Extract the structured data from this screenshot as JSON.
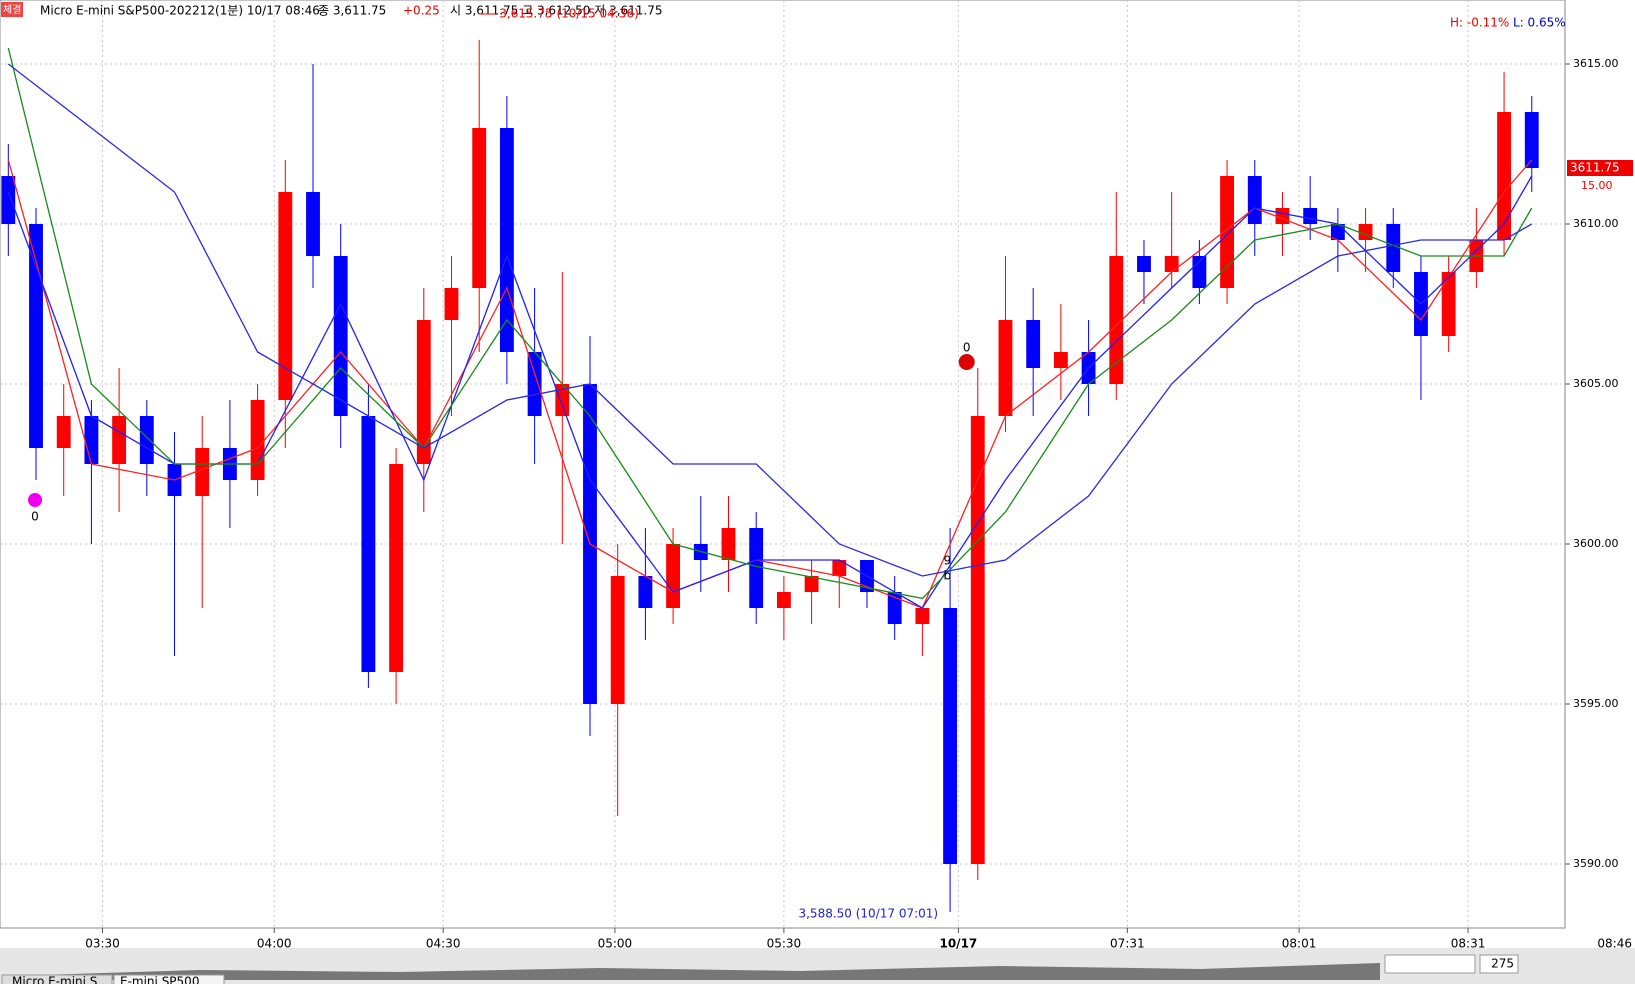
{
  "chart_data": {
    "type": "candlestick",
    "header": {
      "title": "Micro E-mini S&P500-202212(1분) 10/17 08:46",
      "close": "종 3,611.75",
      "change": "+0.25",
      "ohl": "시 3,611.75 고 3,612.50 저 3,611.75",
      "badge": "체결"
    },
    "high_pct": "H: -0.11%",
    "low_pct": "L: 0.65%",
    "high_note": "3,615.75 (10/15 04:36)",
    "low_note": "3,588.50 (10/17 07:01)",
    "last_price": 3611.75,
    "countdown": "15.00",
    "signals": [
      "0",
      "0",
      "9",
      "b"
    ],
    "bar_count": "275",
    "time_now": "08:46",
    "tabs": [
      "Micro E-mini S...",
      "E-mini SP500"
    ],
    "up_color": "#ff0000",
    "down_color": "#0000ff",
    "grid": true,
    "x": [
      0,
      1,
      2,
      3,
      4,
      5,
      6,
      7,
      8,
      9,
      10,
      11,
      12,
      13,
      14,
      15,
      16,
      17,
      18,
      19,
      20,
      21,
      22,
      23,
      24,
      25,
      26,
      27,
      28,
      29,
      30,
      31,
      32,
      33,
      34,
      35,
      36,
      37,
      38,
      39,
      40,
      41,
      42,
      43,
      44,
      45,
      46,
      47,
      48,
      49,
      50,
      51,
      52,
      53,
      54,
      55
    ],
    "open": [
      3611.5,
      3610,
      3603,
      3604,
      3602.5,
      3604,
      3602.5,
      3601.5,
      3603,
      3602,
      3604.5,
      3611,
      3609,
      3604,
      3596,
      3602.5,
      3607,
      3608,
      3613,
      3606,
      3604,
      3605,
      3595,
      3599,
      3598,
      3600,
      3599.5,
      3600.5,
      3598,
      3598.5,
      3599,
      3599.5,
      3598.5,
      3597.5,
      3598,
      3590,
      3604,
      3607,
      3605.5,
      3606,
      3605,
      3609,
      3608.5,
      3609,
      3608,
      3611.5,
      3610,
      3610.5,
      3610,
      3609.5,
      3610,
      3608.5,
      3606.5,
      3608.5,
      3609.5,
      3613.5
    ],
    "high": [
      3612.5,
      3610.5,
      3605,
      3604.5,
      3605.5,
      3604.5,
      3603.5,
      3604,
      3604.5,
      3605,
      3612,
      3615,
      3610,
      3605,
      3603,
      3608,
      3609,
      3615.75,
      3614,
      3608,
      3608.5,
      3606.5,
      3600,
      3600.5,
      3600.5,
      3601.5,
      3601.5,
      3601,
      3599,
      3599.5,
      3599.5,
      3599.5,
      3599,
      3598,
      3600.5,
      3605.5,
      3609,
      3608,
      3607.5,
      3607,
      3611,
      3609.5,
      3611,
      3609.5,
      3612,
      3612,
      3611,
      3611.5,
      3610.5,
      3610.5,
      3610.5,
      3609,
      3609,
      3610.5,
      3614.75,
      3614
    ],
    "low": [
      3609,
      3602,
      3601.5,
      3600,
      3601,
      3601.5,
      3596.5,
      3598,
      3600.5,
      3601.5,
      3603,
      3608,
      3603,
      3595.5,
      3595,
      3601,
      3604,
      3606,
      3605,
      3602.5,
      3600,
      3594,
      3591.5,
      3597,
      3597.5,
      3598.5,
      3598.5,
      3597.5,
      3597,
      3597.5,
      3598,
      3598,
      3597,
      3596.5,
      3588.5,
      3589.5,
      3603.5,
      3604,
      3604.5,
      3604,
      3604.5,
      3607.5,
      3608,
      3607.5,
      3607.5,
      3609,
      3609,
      3609.5,
      3608.5,
      3608.5,
      3608,
      3604.5,
      3606,
      3608,
      3609,
      3611
    ],
    "close": [
      3610,
      3603,
      3604,
      3602.5,
      3604,
      3602.5,
      3601.5,
      3603,
      3602,
      3604.5,
      3611,
      3609,
      3604,
      3596,
      3602.5,
      3607,
      3608,
      3613,
      3606,
      3604,
      3605,
      3595,
      3599,
      3598,
      3600,
      3599.5,
      3600.5,
      3598,
      3598.5,
      3599,
      3599.5,
      3598.5,
      3597.5,
      3598,
      3590,
      3604,
      3607,
      3605.5,
      3606,
      3605,
      3609,
      3608.5,
      3609,
      3608,
      3611.5,
      3610,
      3610.5,
      3610,
      3609.5,
      3610,
      3608.5,
      3606.5,
      3608.5,
      3609.5,
      3613.5,
      3611.75
    ],
    "series": [
      {
        "color": "#ff2020",
        "x": [
          0,
          3,
          6,
          9,
          12,
          15,
          18,
          21,
          24,
          27,
          30,
          33,
          36,
          39,
          42,
          45,
          48,
          51,
          54,
          55
        ],
        "values": [
          3612,
          3602.5,
          3602,
          3603,
          3606,
          3603,
          3608,
          3600,
          3598.5,
          3599.5,
          3599,
          3598,
          3604,
          3606,
          3608.5,
          3610.5,
          3609.5,
          3607,
          3611,
          3612
        ]
      },
      {
        "color": "#2020ff",
        "x": [
          0,
          3,
          6,
          9,
          12,
          15,
          18,
          21,
          24,
          27,
          30,
          33,
          36,
          39,
          42,
          45,
          48,
          51,
          54,
          55
        ],
        "values": [
          3611,
          3604,
          3602.5,
          3602.5,
          3607.5,
          3602,
          3609,
          3602,
          3598.5,
          3599.5,
          3599.5,
          3598,
          3602,
          3605.5,
          3608,
          3610.5,
          3610,
          3607.5,
          3610,
          3611.5
        ]
      },
      {
        "color": "#1a8a1a",
        "x": [
          0,
          3,
          6,
          9,
          12,
          15,
          18,
          21,
          24,
          27,
          30,
          33,
          36,
          39,
          42,
          45,
          48,
          51,
          54,
          55
        ],
        "values": [
          3615.5,
          3605,
          3602.5,
          3602.5,
          3605.5,
          3603,
          3607,
          3604,
          3600,
          3599.3,
          3598.8,
          3598.3,
          3601,
          3605,
          3607,
          3609.5,
          3610,
          3609,
          3609,
          3610.5
        ]
      },
      {
        "color": "#2a2ae0",
        "x": [
          0,
          3,
          6,
          9,
          12,
          15,
          18,
          21,
          24,
          27,
          30,
          33,
          36,
          39,
          42,
          45,
          48,
          51,
          54,
          55
        ],
        "values": [
          3615,
          3613,
          3611,
          3606,
          3604.5,
          3603,
          3604.5,
          3605,
          3602.5,
          3602.5,
          3600,
          3599,
          3599.5,
          3601.5,
          3605,
          3607.5,
          3609,
          3609.5,
          3609.5,
          3610
        ]
      }
    ],
    "xlim": [
      -0.3,
      56.2
    ],
    "ylim": [
      3588,
      3617
    ],
    "xticks": [
      {
        "value": 3.4,
        "label": "03:30"
      },
      {
        "value": 9.6,
        "label": "04:00"
      },
      {
        "value": 15.7,
        "label": "04:30"
      },
      {
        "value": 21.9,
        "label": "05:00"
      },
      {
        "value": 28.0,
        "label": "05:30"
      },
      {
        "value": 34.3,
        "label": "10/17"
      },
      {
        "value": 40.4,
        "label": "07:31"
      },
      {
        "value": 46.6,
        "label": "08:01"
      },
      {
        "value": 52.7,
        "label": "08:31"
      }
    ],
    "yticks": [
      {
        "value": 3590,
        "label": "3590.00"
      },
      {
        "value": 3595,
        "label": "3595.00"
      },
      {
        "value": 3600,
        "label": "3600.00"
      },
      {
        "value": 3605,
        "label": "3605.00"
      },
      {
        "value": 3610,
        "label": "3610.00"
      },
      {
        "value": 3615,
        "label": "3615.00"
      }
    ]
  }
}
